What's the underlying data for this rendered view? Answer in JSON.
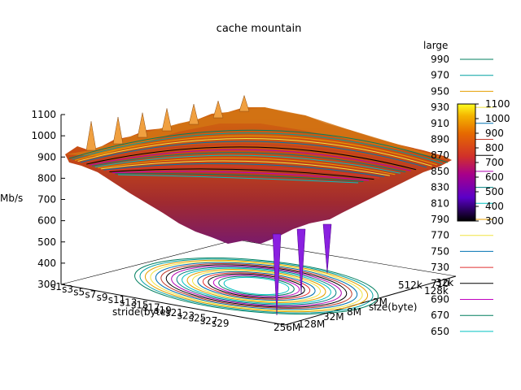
{
  "chart_data": {
    "type": "surface",
    "title": "cache mountain",
    "zlabel": "Mb/s",
    "xlabel": "stride(byte)",
    "ylabel": "size(byte)",
    "zlim": [
      300,
      1100
    ],
    "z_ticks": [
      "300",
      "400",
      "500",
      "600",
      "700",
      "800",
      "900",
      "1000",
      "1100"
    ],
    "x_ticks": [
      "s1",
      "s3",
      "s5",
      "s7",
      "s9",
      "s11",
      "s13",
      "s15",
      "s17",
      "s19",
      "s21",
      "s23",
      "s25",
      "s27",
      "s29"
    ],
    "y_ticks": [
      "32k",
      "128k",
      "512k",
      "2M",
      "8M",
      "32M",
      "128M",
      "256M"
    ],
    "surface": {
      "plateau": 870,
      "center_min": 650,
      "spikes": [
        {
          "x": "s1",
          "value": 1030
        },
        {
          "x": "s5",
          "value": 1035
        },
        {
          "x": "s9",
          "value": 1040
        },
        {
          "x": "s13",
          "value": 1045
        },
        {
          "x": "s17",
          "value": 1050
        },
        {
          "x": "s21",
          "value": 1050
        },
        {
          "x": "s25",
          "value": 1060
        }
      ],
      "dips": [
        {
          "y": "128M",
          "value": 340
        },
        {
          "y": "32M",
          "value": 420
        },
        {
          "y": "8M",
          "value": 500
        }
      ]
    },
    "contour_legend": {
      "title": "large",
      "levels": [
        "990",
        "970",
        "950",
        "930",
        "910",
        "890",
        "870",
        "850",
        "830",
        "810",
        "790",
        "770",
        "750",
        "730",
        "710",
        "690",
        "670",
        "650"
      ],
      "colors": [
        "#007f5f",
        "#00a0a0",
        "#e69f00",
        "#f0e442",
        "#0072b2",
        "#c0392b",
        "#000000",
        "#b000b0",
        "#008080",
        "#00c0c0",
        "#e69f00",
        "#f0e442",
        "#0072b2",
        "#e03030",
        "#000000",
        "#c000c0",
        "#007f5f",
        "#00c0c0"
      ]
    },
    "colorbox": {
      "range": [
        300,
        1100
      ],
      "ticks": [
        "300",
        "400",
        "500",
        "600",
        "700",
        "800",
        "900",
        "1000",
        "1100"
      ]
    }
  }
}
